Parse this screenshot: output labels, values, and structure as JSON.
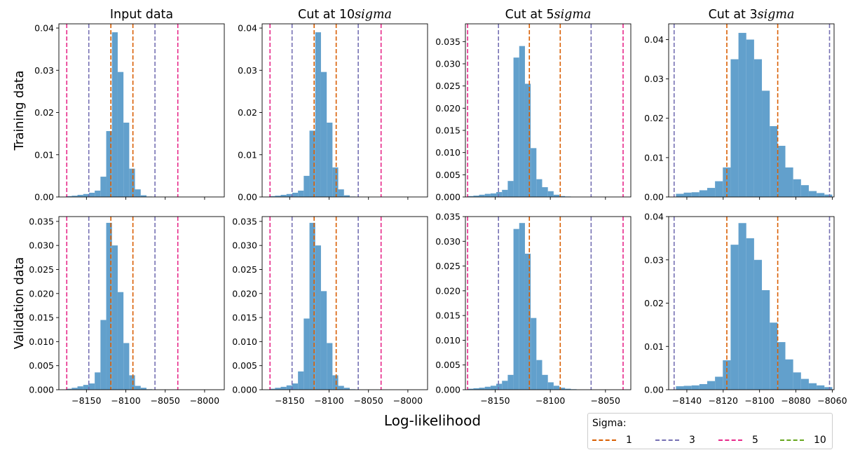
{
  "chart_data": {
    "type": "histogram-grid",
    "xlabel": "Log-likelihood",
    "row_labels": [
      "Training data",
      "Validation data"
    ],
    "legend": {
      "title": "Sigma:",
      "items": [
        {
          "label": "1",
          "color": "#d95f02"
        },
        {
          "label": "3",
          "color": "#7570b3"
        },
        {
          "label": "5",
          "color": "#e7298a"
        },
        {
          "label": "10",
          "color": "#66a61e"
        }
      ]
    },
    "bar_color": "#62a0cc",
    "sigma_lines": {
      "full": [
        {
          "sigma": "5",
          "x": -8175,
          "color": "#e7298a"
        },
        {
          "sigma": "3",
          "x": -8147,
          "color": "#7570b3"
        },
        {
          "sigma": "1",
          "x": -8119,
          "color": "#d95f02"
        },
        {
          "sigma": "1",
          "x": -8091,
          "color": "#d95f02"
        },
        {
          "sigma": "3",
          "x": -8063,
          "color": "#7570b3"
        },
        {
          "sigma": "5",
          "x": -8034,
          "color": "#e7298a"
        }
      ],
      "cut5": [
        {
          "sigma": "5",
          "x": -8175,
          "color": "#e7298a"
        },
        {
          "sigma": "3",
          "x": -8147,
          "color": "#7570b3"
        },
        {
          "sigma": "1",
          "x": -8119,
          "color": "#d95f02"
        },
        {
          "sigma": "1",
          "x": -8091,
          "color": "#d95f02"
        },
        {
          "sigma": "3",
          "x": -8063,
          "color": "#7570b3"
        },
        {
          "sigma": "5",
          "x": -8034,
          "color": "#e7298a"
        }
      ],
      "cut3": [
        {
          "sigma": "3",
          "x": -8147,
          "color": "#7570b3"
        },
        {
          "sigma": "1",
          "x": -8118,
          "color": "#d95f02"
        },
        {
          "sigma": "1",
          "x": -8090,
          "color": "#d95f02"
        },
        {
          "sigma": "3",
          "x": -8061.5,
          "color": "#7570b3"
        }
      ]
    },
    "columns": [
      {
        "title_prefix": "Input data",
        "title_italic": "",
        "xlim": [
          -8185,
          -7975
        ],
        "xticks": [
          -8150,
          -8100,
          -8050,
          -8000
        ],
        "lines": "full"
      },
      {
        "title_prefix": "Cut at 10",
        "title_italic": "sigma",
        "xlim": [
          -8185,
          -7975
        ],
        "xticks": [
          -8150,
          -8100,
          -8050,
          -8000
        ],
        "lines": "full"
      },
      {
        "title_prefix": "Cut at 5",
        "title_italic": "sigma",
        "xlim": [
          -8177,
          -8027
        ],
        "xticks": [
          -8150,
          -8100,
          -8050
        ],
        "lines": "cut5"
      },
      {
        "title_prefix": "Cut at 3",
        "title_italic": "sigma",
        "xlim": [
          -8150,
          -8059
        ],
        "xticks": [
          -8140,
          -8120,
          -8100,
          -8080,
          -8060
        ],
        "lines": "cut3"
      }
    ],
    "panels": [
      {
        "row": 0,
        "col": 0,
        "ylim": [
          0,
          0.041
        ],
        "yticks": [
          "0.00",
          "0.01",
          "0.02",
          "0.03",
          "0.04"
        ],
        "ytick_values": [
          0,
          0.01,
          0.02,
          0.03,
          0.04
        ],
        "bin_start": -8176,
        "bin_width": 7.3,
        "values": [
          0.0002,
          0.0003,
          0.0005,
          0.0007,
          0.001,
          0.0015,
          0.0048,
          0.0156,
          0.039,
          0.0296,
          0.0176,
          0.0067,
          0.0018,
          0.0004,
          0.0001,
          0.0
        ]
      },
      {
        "row": 0,
        "col": 1,
        "ylim": [
          0,
          0.041
        ],
        "yticks": [
          "0.00",
          "0.01",
          "0.02",
          "0.03",
          "0.04"
        ],
        "ytick_values": [
          0,
          0.01,
          0.02,
          0.03,
          0.04
        ],
        "bin_start": -8176,
        "bin_width": 7.3,
        "values": [
          0.0002,
          0.0003,
          0.0005,
          0.0007,
          0.001,
          0.0015,
          0.005,
          0.0157,
          0.039,
          0.0296,
          0.0176,
          0.007,
          0.0018,
          0.0004,
          0.0001,
          0.0
        ]
      },
      {
        "row": 0,
        "col": 2,
        "ylim": [
          0,
          0.039
        ],
        "yticks": [
          "0.000",
          "0.005",
          "0.010",
          "0.015",
          "0.020",
          "0.025",
          "0.030",
          "0.035"
        ],
        "ytick_values": [
          0,
          0.005,
          0.01,
          0.015,
          0.02,
          0.025,
          0.03,
          0.035
        ],
        "bin_start": -8175,
        "bin_width": 5.2,
        "values": [
          0.0002,
          0.0003,
          0.0005,
          0.0007,
          0.0008,
          0.0011,
          0.0016,
          0.0036,
          0.0314,
          0.034,
          0.0255,
          0.011,
          0.004,
          0.0022,
          0.0013,
          0.0005,
          0.0002,
          0.0001,
          0.0,
          0.0
        ]
      },
      {
        "row": 0,
        "col": 3,
        "ylim": [
          0,
          0.044
        ],
        "yticks": [
          "0.00",
          "0.01",
          "0.02",
          "0.03",
          "0.04"
        ],
        "ytick_values": [
          0,
          0.01,
          0.02,
          0.03,
          0.04
        ],
        "bin_start": -8146,
        "bin_width": 4.3,
        "values": [
          0.0008,
          0.0011,
          0.0012,
          0.0017,
          0.0023,
          0.004,
          0.0075,
          0.035,
          0.0417,
          0.04,
          0.035,
          0.027,
          0.018,
          0.013,
          0.0075,
          0.0045,
          0.003,
          0.0015,
          0.001,
          0.0006
        ]
      },
      {
        "row": 1,
        "col": 0,
        "ylim": [
          0,
          0.036
        ],
        "yticks": [
          "0.000",
          "0.005",
          "0.010",
          "0.015",
          "0.020",
          "0.025",
          "0.030",
          "0.035"
        ],
        "ytick_values": [
          0,
          0.005,
          0.01,
          0.015,
          0.02,
          0.025,
          0.03,
          0.035
        ],
        "bin_start": -8176,
        "bin_width": 7.3,
        "values": [
          0.0002,
          0.0004,
          0.0007,
          0.001,
          0.0013,
          0.0036,
          0.0145,
          0.0347,
          0.03,
          0.0203,
          0.0097,
          0.003,
          0.0008,
          0.0004,
          0.0001,
          0.0
        ]
      },
      {
        "row": 1,
        "col": 1,
        "ylim": [
          0,
          0.036
        ],
        "yticks": [
          "0.000",
          "0.005",
          "0.010",
          "0.015",
          "0.020",
          "0.025",
          "0.030",
          "0.035"
        ],
        "ytick_values": [
          0,
          0.005,
          0.01,
          0.015,
          0.02,
          0.025,
          0.03,
          0.035
        ],
        "bin_start": -8176,
        "bin_width": 7.3,
        "values": [
          0.0002,
          0.0004,
          0.0006,
          0.0009,
          0.0013,
          0.0038,
          0.0148,
          0.0347,
          0.03,
          0.0205,
          0.0097,
          0.003,
          0.0008,
          0.0004,
          0.0001,
          0.0
        ]
      },
      {
        "row": 1,
        "col": 2,
        "ylim": [
          0,
          0.035
        ],
        "yticks": [
          "0.000",
          "0.005",
          "0.010",
          "0.015",
          "0.020",
          "0.025",
          "0.030",
          "0.035"
        ],
        "ytick_values": [
          0,
          0.005,
          0.01,
          0.015,
          0.02,
          0.025,
          0.03,
          0.035
        ],
        "bin_start": -8175,
        "bin_width": 5.2,
        "values": [
          0.0002,
          0.0003,
          0.0004,
          0.0006,
          0.0008,
          0.0012,
          0.0018,
          0.003,
          0.0325,
          0.0337,
          0.0275,
          0.0145,
          0.006,
          0.003,
          0.0015,
          0.0008,
          0.0004,
          0.0002,
          0.0001,
          0.0
        ]
      },
      {
        "row": 1,
        "col": 3,
        "ylim": [
          0,
          0.04
        ],
        "yticks": [
          "0.00",
          "0.01",
          "0.02",
          "0.03",
          "0.04"
        ],
        "ytick_values": [
          0,
          0.01,
          0.02,
          0.03,
          0.04
        ],
        "bin_start": -8146,
        "bin_width": 4.3,
        "values": [
          0.0008,
          0.0009,
          0.001,
          0.0013,
          0.002,
          0.003,
          0.0068,
          0.0335,
          0.0385,
          0.035,
          0.03,
          0.023,
          0.0155,
          0.011,
          0.007,
          0.004,
          0.0025,
          0.0015,
          0.001,
          0.0006
        ]
      }
    ]
  }
}
